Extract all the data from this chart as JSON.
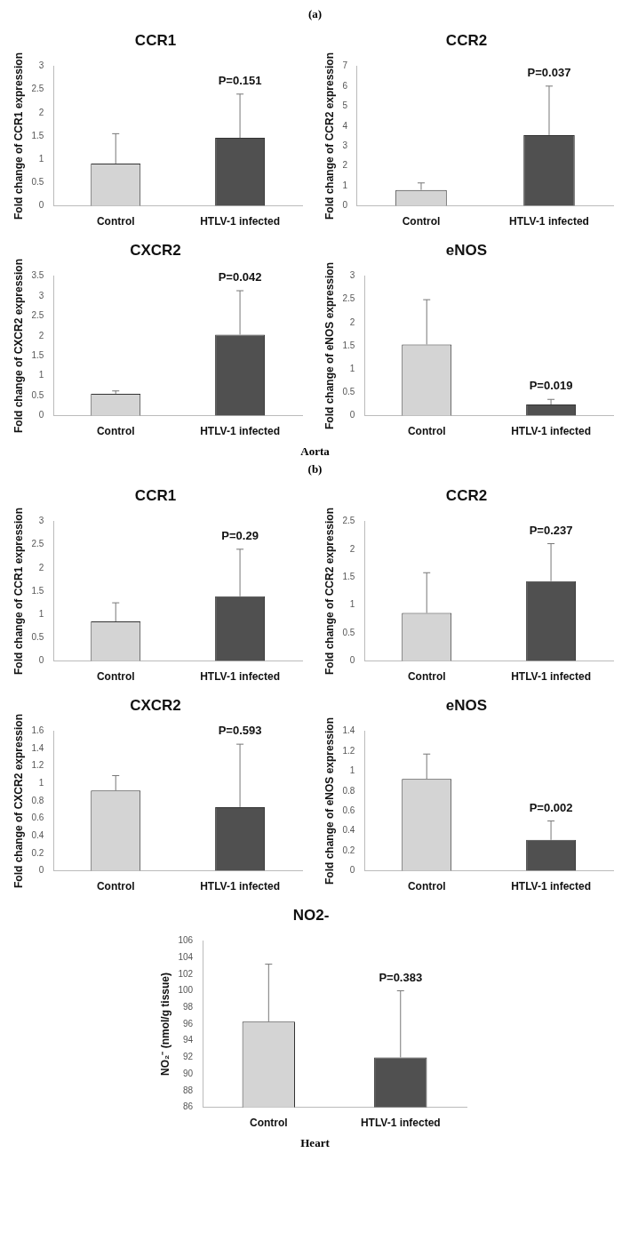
{
  "chart_data": [
    {
      "type": "bar",
      "title": "CCR1",
      "ylabel": "Fold change of CCR1 expression",
      "categories": [
        "Control",
        "HTLV-1 infected"
      ],
      "values": [
        0.91,
        1.46
      ],
      "errors": [
        [
          0.91,
          1.55
        ],
        [
          1.46,
          2.4
        ]
      ],
      "colors": [
        "#d4d4d4",
        "#505050"
      ],
      "ylim": [
        0,
        3
      ],
      "yticks": [
        0,
        0.5,
        1,
        1.5,
        2,
        2.5,
        3
      ],
      "grid": false,
      "annotations": [
        "(a)",
        {
          "text": "P=0.151",
          "x": "HTLV-1 infected",
          "y": 2.4
        }
      ]
    },
    {
      "type": "bar",
      "title": "CCR2",
      "ylabel": "Fold change of CCR2 expression",
      "categories": [
        "Control",
        "HTLV-1 infected"
      ],
      "values": [
        0.8,
        3.55
      ],
      "errors": [
        [
          0.8,
          1.15
        ],
        [
          3.55,
          6
        ]
      ],
      "colors": [
        "#d4d4d4",
        "#505050"
      ],
      "ylim": [
        0,
        7
      ],
      "yticks": [
        0,
        1,
        2,
        3,
        4,
        5,
        6,
        7
      ],
      "grid": false,
      "annotations": [
        {
          "text": "P=0.037",
          "x": "HTLV-1 infected",
          "y": 6
        }
      ]
    },
    {
      "type": "bar",
      "title": "CXCR2",
      "ylabel": "Fold change of CXCR2 expression",
      "categories": [
        "Control",
        "HTLV-1 infected"
      ],
      "values": [
        0.55,
        2.03
      ],
      "errors": [
        [
          0.55,
          0.62
        ],
        [
          2.03,
          3.13
        ]
      ],
      "colors": [
        "#d4d4d4",
        "#505050"
      ],
      "ylim": [
        0,
        3.5
      ],
      "yticks": [
        0,
        0.5,
        1,
        1.5,
        2,
        2.5,
        3,
        3.5
      ],
      "grid": false,
      "annotations": [
        {
          "text": "P=0.042",
          "x": "HTLV-1 infected",
          "y": 3.13
        }
      ]
    },
    {
      "type": "bar",
      "title": "eNOS",
      "ylabel": "Fold change of eNOS expression",
      "categories": [
        "Control",
        "HTLV-1 infected"
      ],
      "values": [
        1.53,
        0.24
      ],
      "errors": [
        [
          1.53,
          2.49
        ],
        [
          0.24,
          0.35
        ]
      ],
      "colors": [
        "#d4d4d4",
        "#505050"
      ],
      "ylim": [
        0,
        3
      ],
      "yticks": [
        0,
        0.5,
        1,
        1.5,
        2,
        2.5,
        3
      ],
      "grid": false,
      "annotations": [
        {
          "text": "P=0.019",
          "x": "HTLV-1 infected",
          "y": 0.35
        }
      ]
    },
    {
      "type": "bar",
      "title": "CCR1",
      "ylabel": "Fold change of CCR1 expression",
      "categories": [
        "Control",
        "HTLV-1 infected"
      ],
      "values": [
        0.85,
        1.39
      ],
      "errors": [
        [
          0.85,
          1.25
        ],
        [
          1.39,
          2.4
        ]
      ],
      "colors": [
        "#d4d4d4",
        "#505050"
      ],
      "ylim": [
        0,
        3
      ],
      "yticks": [
        0,
        0.5,
        1,
        1.5,
        2,
        2.5,
        3
      ],
      "grid": false,
      "annotations": [
        "Aorta",
        "(b)",
        {
          "text": "P=0.29",
          "x": "HTLV-1 infected",
          "y": 2.4
        }
      ]
    },
    {
      "type": "bar",
      "title": "CCR2",
      "ylabel": "Fold change of CCR2 expression",
      "categories": [
        "Control",
        "HTLV-1 infected"
      ],
      "values": [
        0.86,
        1.43
      ],
      "errors": [
        [
          0.86,
          1.58
        ],
        [
          1.43,
          2.1
        ]
      ],
      "colors": [
        "#d4d4d4",
        "#505050"
      ],
      "ylim": [
        0,
        2.5
      ],
      "yticks": [
        0,
        0.5,
        1,
        1.5,
        2,
        2.5
      ],
      "grid": false,
      "annotations": [
        {
          "text": "P=0.237",
          "x": "HTLV-1 infected",
          "y": 2.1
        }
      ]
    },
    {
      "type": "bar",
      "title": "CXCR2",
      "ylabel": "Fold change of CXCR2 expression",
      "categories": [
        "Control",
        "HTLV-1 infected"
      ],
      "values": [
        0.92,
        0.73
      ],
      "errors": [
        [
          0.92,
          1.09
        ],
        [
          0.73,
          1.45
        ]
      ],
      "colors": [
        "#d4d4d4",
        "#505050"
      ],
      "ylim": [
        0,
        1.6
      ],
      "yticks": [
        0,
        0.2,
        0.4,
        0.6,
        0.8,
        1,
        1.2,
        1.4,
        1.6
      ],
      "grid": false,
      "annotations": [
        {
          "text": "P=0.593",
          "x": "HTLV-1 infected",
          "y": 1.45
        }
      ]
    },
    {
      "type": "bar",
      "title": "eNOS",
      "ylabel": "Fold change of eNOS expression",
      "categories": [
        "Control",
        "HTLV-1 infected"
      ],
      "values": [
        0.92,
        0.31
      ],
      "errors": [
        [
          0.92,
          1.17
        ],
        [
          0.31,
          0.5
        ]
      ],
      "colors": [
        "#d4d4d4",
        "#505050"
      ],
      "ylim": [
        0,
        1.4
      ],
      "yticks": [
        0,
        0.2,
        0.4,
        0.6,
        0.8,
        1,
        1.2,
        1.4
      ],
      "grid": false,
      "annotations": [
        {
          "text": "P=0.002",
          "x": "HTLV-1 infected",
          "y": 0.5
        }
      ]
    },
    {
      "type": "bar",
      "title": "NO2-",
      "ylabel": "NO₂⁻ (nmol/g tissue)",
      "categories": [
        "Control",
        "HTLV-1 infected"
      ],
      "values": [
        96.3,
        92
      ],
      "errors": [
        [
          96.3,
          103.2
        ],
        [
          92,
          100
        ]
      ],
      "colors": [
        "#d4d4d4",
        "#505050"
      ],
      "ylim": [
        86,
        106
      ],
      "yticks": [
        86,
        88,
        90,
        92,
        94,
        96,
        98,
        100,
        102,
        104,
        106
      ],
      "grid": false,
      "annotations": [
        {
          "text": "P=0.383",
          "x": "HTLV-1 infected",
          "y": 100
        },
        "Heart"
      ]
    }
  ]
}
